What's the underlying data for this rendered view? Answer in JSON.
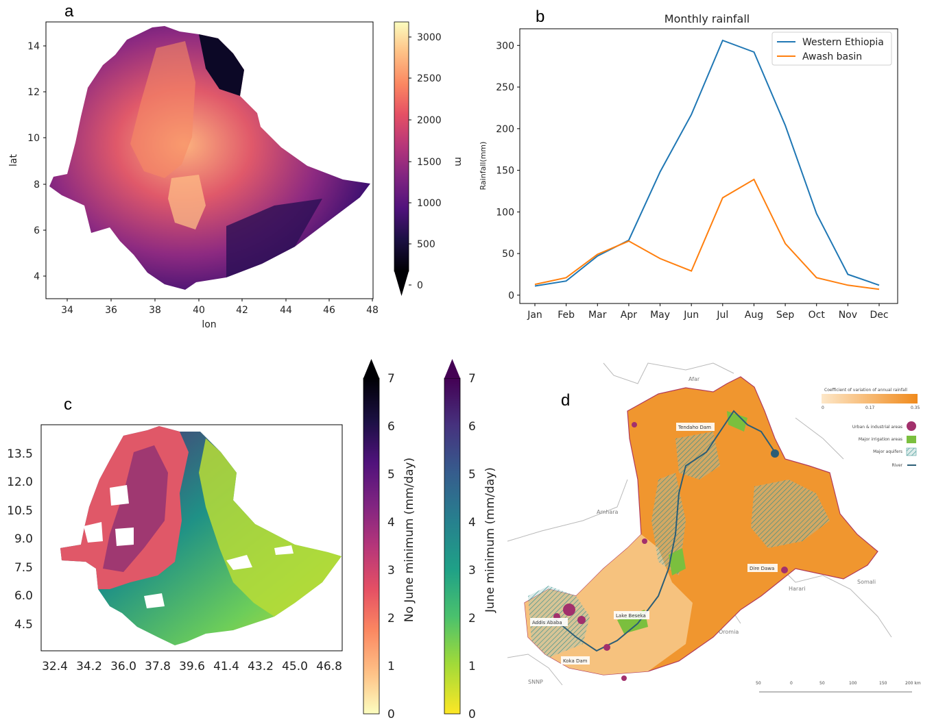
{
  "panels": {
    "a": {
      "letter": "a",
      "xlabel": "lon",
      "ylabel": "lat",
      "x_ticks": [
        "34",
        "36",
        "38",
        "40",
        "42",
        "44",
        "46",
        "48"
      ],
      "y_ticks": [
        "4",
        "6",
        "8",
        "10",
        "12",
        "14"
      ],
      "colorbar": {
        "label": "m",
        "ticks": [
          "0",
          "500",
          "1000",
          "1500",
          "2000",
          "2500",
          "3000"
        ],
        "colormap": "magma"
      }
    },
    "b": {
      "letter": "b"
    },
    "c": {
      "letter": "c",
      "x_ticks": [
        "32.4",
        "34.2",
        "36.0",
        "37.8",
        "39.6",
        "41.4",
        "43.2",
        "45.0",
        "46.8"
      ],
      "y_ticks": [
        "4.5",
        "6.0",
        "7.5",
        "9.0",
        "10.5",
        "12.0",
        "13.5"
      ],
      "colorbar1": {
        "label": "No June minimum (mm/day)",
        "ticks": [
          "0",
          "1",
          "2",
          "3",
          "4",
          "5",
          "6",
          "7"
        ],
        "colormap": "magma_r"
      },
      "colorbar2": {
        "label": "June minimum (mm/day)",
        "ticks": [
          "0",
          "1",
          "2",
          "3",
          "4",
          "5",
          "6",
          "7"
        ],
        "colormap": "viridis_r"
      }
    },
    "d": {
      "letter": "d",
      "legend_title": "Coefficient of variation of annual rainfall",
      "legend_scale": [
        "0",
        "0.17",
        "0.35"
      ],
      "legend_items": [
        "Urban & industrial areas",
        "Major irrigation areas",
        "Major aquifers",
        "River"
      ],
      "region_labels": [
        "Afar",
        "Amhara",
        "Harari",
        "Somali",
        "Oromia",
        "SNNP"
      ],
      "place_labels": [
        "Tendaho Dam",
        "Dire Dawa",
        "Lake Beseka",
        "Addis Ababa",
        "Koka Dam"
      ],
      "scalebar": [
        "50",
        "0",
        "50",
        "100",
        "150",
        "200 km"
      ]
    }
  },
  "chart_data": [
    {
      "type": "heatmap",
      "panel": "a",
      "title": "",
      "xlabel": "lon",
      "ylabel": "lat",
      "xlim": [
        33,
        48
      ],
      "ylim": [
        3.3,
        15
      ],
      "colorbar_label": "m",
      "colorbar_range": [
        0,
        3200
      ]
    },
    {
      "type": "line",
      "panel": "b",
      "title": "Monthly rainfall",
      "xlabel": "",
      "ylabel": "Rainfall(mm)",
      "categories": [
        "Jan",
        "Feb",
        "Mar",
        "Apr",
        "May",
        "Jun",
        "Jul",
        "Aug",
        "Sep",
        "Oct",
        "Nov",
        "Dec"
      ],
      "series": [
        {
          "name": "Western Ethiopia",
          "color": "#1f77b4",
          "values": [
            11,
            17,
            47,
            66,
            148,
            217,
            306,
            292,
            204,
            98,
            25,
            12
          ]
        },
        {
          "name": "Awash basin",
          "color": "#ff7f0e",
          "values": [
            13,
            21,
            49,
            65,
            44,
            29,
            117,
            139,
            62,
            21,
            12,
            7
          ]
        }
      ],
      "yticks": [
        0,
        50,
        100,
        150,
        200,
        250,
        300
      ],
      "ylim": [
        -10,
        320
      ],
      "legend_position": "top-right"
    },
    {
      "type": "heatmap",
      "panel": "c",
      "title": "",
      "xlim": [
        31.7,
        48.6
      ],
      "ylim": [
        3.2,
        14.4
      ],
      "colorbars": [
        {
          "label": "No June minimum (mm/day)",
          "range": [
            0,
            7
          ]
        },
        {
          "label": "June minimum (mm/day)",
          "range": [
            0,
            7
          ]
        }
      ]
    }
  ]
}
